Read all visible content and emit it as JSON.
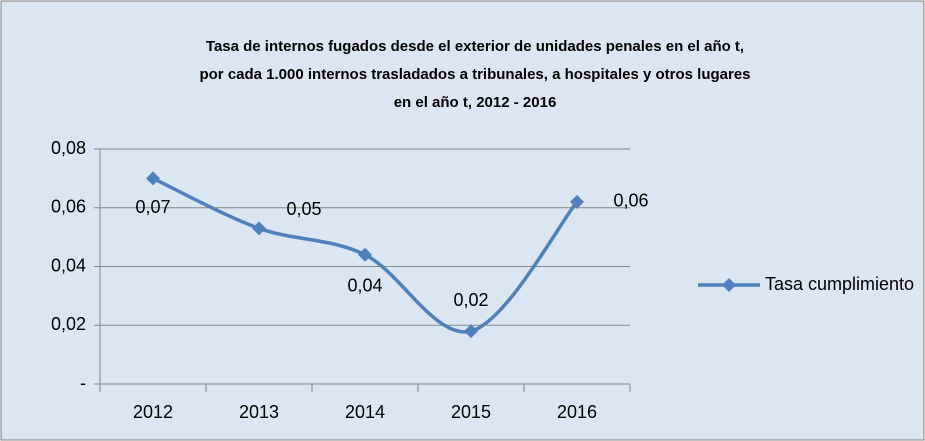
{
  "chart_data": {
    "type": "line",
    "title": [
      "Tasa de internos fugados desde el exterior de unidades penales en el año t,",
      "por cada 1.000 internos trasladados a tribunales, a hospitales y otros lugares",
      "en el año t, 2012 - 2016"
    ],
    "categories": [
      "2012",
      "2013",
      "2014",
      "2015",
      "2016"
    ],
    "series": [
      {
        "name": "Tasa cumplimiento",
        "color": "#4f81bd",
        "values": [
          0.07,
          0.053,
          0.044,
          0.018,
          0.062
        ],
        "value_labels": [
          "0,07",
          "0,05",
          "0,04",
          "0,02",
          "0,06"
        ]
      }
    ],
    "ylim": [
      0,
      0.08
    ],
    "yticks": [
      {
        "value": 0,
        "label": "-"
      },
      {
        "value": 0.02,
        "label": "0,02"
      },
      {
        "value": 0.04,
        "label": "0,04"
      },
      {
        "value": 0.06,
        "label": "0,06"
      },
      {
        "value": 0.08,
        "label": "0,08"
      }
    ],
    "grid": true,
    "legend": "right"
  }
}
